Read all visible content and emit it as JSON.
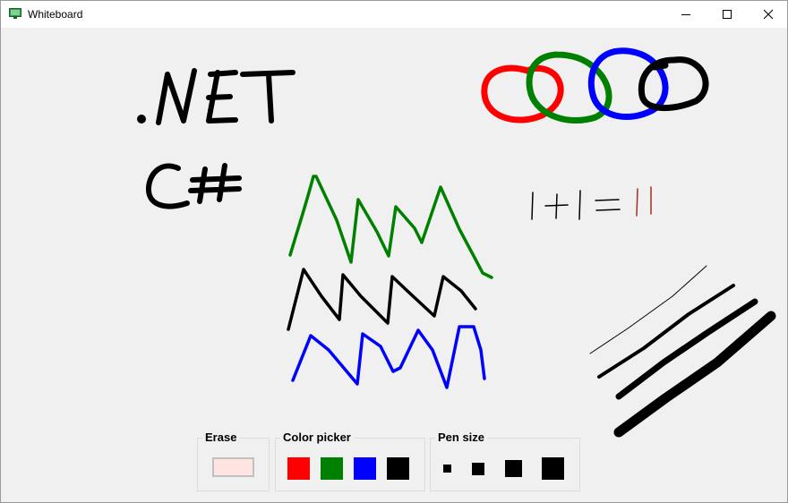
{
  "window": {
    "title": "Whiteboard"
  },
  "title_icon": "whiteboard-app-icon",
  "controls": {
    "minimize_icon": "minimize-icon",
    "maximize_icon": "maximize-icon",
    "close_icon": "close-icon"
  },
  "drawing": {
    "text_strokes": [
      ".NET",
      "C#",
      "|+|=||"
    ]
  },
  "toolbar": {
    "erase": {
      "label": "Erase",
      "color": "#ffe4e1"
    },
    "color_picker": {
      "label": "Color picker",
      "colors": [
        "#ff0000",
        "#008000",
        "#0000ff",
        "#000000"
      ]
    },
    "pen_size": {
      "label": "Pen size"
    }
  }
}
